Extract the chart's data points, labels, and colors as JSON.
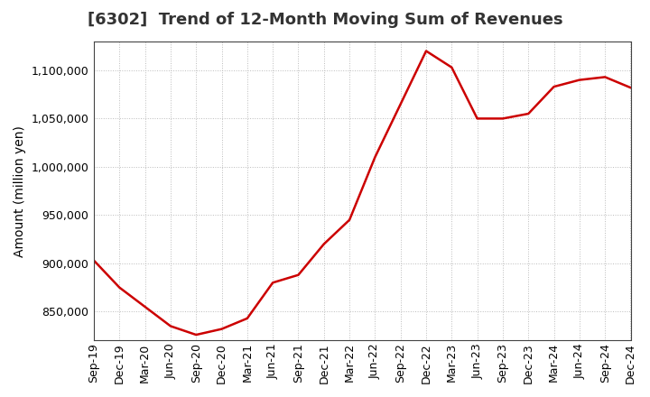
{
  "title": "[6302]  Trend of 12-Month Moving Sum of Revenues",
  "ylabel": "Amount (million yen)",
  "background_color": "#ffffff",
  "line_color": "#cc0000",
  "grid_color": "#bbbbbb",
  "x_labels": [
    "Sep-19",
    "Dec-19",
    "Mar-20",
    "Jun-20",
    "Sep-20",
    "Dec-20",
    "Mar-21",
    "Jun-21",
    "Sep-21",
    "Dec-21",
    "Mar-22",
    "Jun-22",
    "Sep-22",
    "Dec-22",
    "Mar-23",
    "Jun-23",
    "Sep-23",
    "Dec-23",
    "Mar-24",
    "Jun-24",
    "Sep-24",
    "Dec-24"
  ],
  "y_values": [
    903000,
    875000,
    855000,
    835000,
    826000,
    832000,
    843000,
    880000,
    888000,
    920000,
    945000,
    1010000,
    1065000,
    1120000,
    1103000,
    1050000,
    1050000,
    1055000,
    1083000,
    1090000,
    1093000,
    1082000
  ],
  "ylim": [
    820000,
    1130000
  ],
  "yticks": [
    850000,
    900000,
    950000,
    1000000,
    1050000,
    1100000
  ],
  "title_fontsize": 13,
  "ylabel_fontsize": 10,
  "tick_fontsize": 9
}
